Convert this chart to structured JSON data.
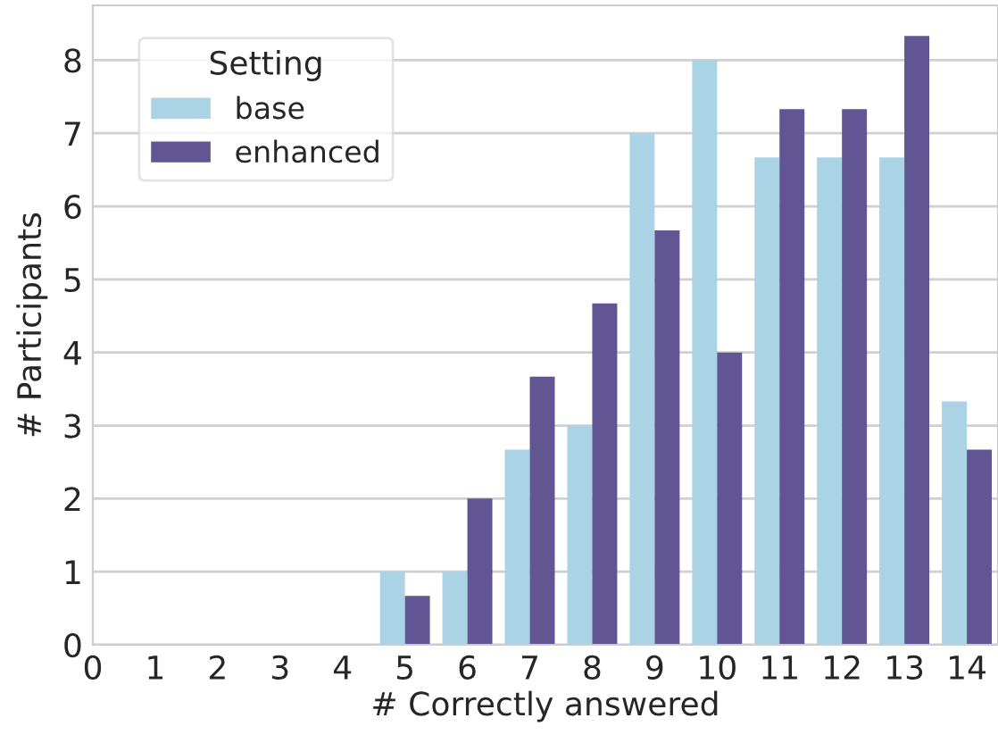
{
  "chart_data": {
    "type": "bar",
    "xlabel": "# Correctly answered",
    "ylabel": "# Participants",
    "legend_title": "Setting",
    "legend": "top left",
    "grid": "y",
    "x": [
      5,
      6,
      7,
      8,
      9,
      10,
      11,
      12,
      13,
      14
    ],
    "series": [
      {
        "name": "base",
        "color": "#abd3e6",
        "values": [
          1,
          1,
          2.67,
          3,
          7,
          8,
          6.67,
          6.67,
          6.67,
          3.33
        ]
      },
      {
        "name": "enhanced",
        "color": "#625593",
        "values": [
          0.67,
          2,
          3.67,
          4.67,
          5.67,
          4,
          7.33,
          7.33,
          8.33,
          2.67
        ]
      }
    ],
    "xlim": [
      0,
      14.5
    ],
    "xticks": [
      0,
      1,
      2,
      3,
      4,
      5,
      6,
      7,
      8,
      9,
      10,
      11,
      12,
      13,
      14
    ],
    "ylim": [
      0,
      8.75
    ],
    "yticks": [
      0,
      1,
      2,
      3,
      4,
      5,
      6,
      7,
      8
    ]
  }
}
